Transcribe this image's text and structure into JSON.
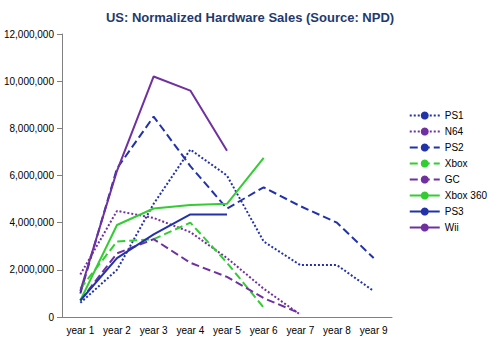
{
  "chart_data": {
    "type": "line",
    "title": "US: Normalized Hardware Sales (Source: NPD)",
    "categories": [
      "year 1",
      "year 2",
      "year 3",
      "year 4",
      "year 5",
      "year 6",
      "year 7",
      "year 8",
      "year 9"
    ],
    "series": [
      {
        "name": "PS1",
        "color": "#2233aa",
        "line_style": "dotted",
        "marker": "none",
        "values": [
          600000,
          2000000,
          4800000,
          7100000,
          6000000,
          3200000,
          2200000,
          2200000,
          1100000
        ]
      },
      {
        "name": "N64",
        "color": "#7030a0",
        "line_style": "dotted",
        "marker": "none",
        "values": [
          1800000,
          4500000,
          4200000,
          3600000,
          2500000,
          1200000,
          100000,
          null,
          null
        ]
      },
      {
        "name": "PS2",
        "color": "#2233aa",
        "line_style": "dashed",
        "marker": "none",
        "values": [
          1000000,
          6300000,
          8500000,
          6400000,
          4600000,
          5500000,
          4700000,
          4000000,
          2500000
        ]
      },
      {
        "name": "Xbox",
        "color": "#33cc33",
        "line_style": "dashed",
        "marker": "none",
        "values": [
          1200000,
          3200000,
          3300000,
          4000000,
          2300000,
          400000,
          null,
          null,
          null
        ]
      },
      {
        "name": "GC",
        "color": "#7030a0",
        "line_style": "dashed",
        "marker": "none",
        "values": [
          700000,
          2700000,
          3300000,
          2300000,
          1700000,
          800000,
          150000,
          null,
          null
        ]
      },
      {
        "name": "Xbox 360",
        "color": "#33cc33",
        "line_style": "solid",
        "marker": "none",
        "values": [
          700000,
          3900000,
          4600000,
          4750000,
          4800000,
          6750000,
          null,
          null,
          null
        ]
      },
      {
        "name": "PS3",
        "color": "#2233aa",
        "line_style": "solid",
        "marker": "none",
        "values": [
          700000,
          2500000,
          3500000,
          4350000,
          4350000,
          null,
          null,
          null,
          null
        ]
      },
      {
        "name": "Wii",
        "color": "#7030a0",
        "line_style": "solid",
        "marker": "none",
        "values": [
          1100000,
          6200000,
          10200000,
          9600000,
          7050000,
          null,
          null,
          null,
          null
        ]
      }
    ],
    "ylim": [
      0,
      12000000
    ],
    "yticks": [
      0,
      {
        "value": 2000000,
        "label": "2,000,000"
      },
      {
        "value": 4000000,
        "label": "4,000,000"
      },
      {
        "value": 6000000,
        "label": "6,000,000"
      },
      {
        "value": 8000000,
        "label": "8,000,000"
      },
      {
        "value": 10000000,
        "label": "10,000,000"
      },
      {
        "value": 12000000,
        "label": "12,000,000"
      }
    ],
    "grid": false,
    "legend": "right"
  }
}
